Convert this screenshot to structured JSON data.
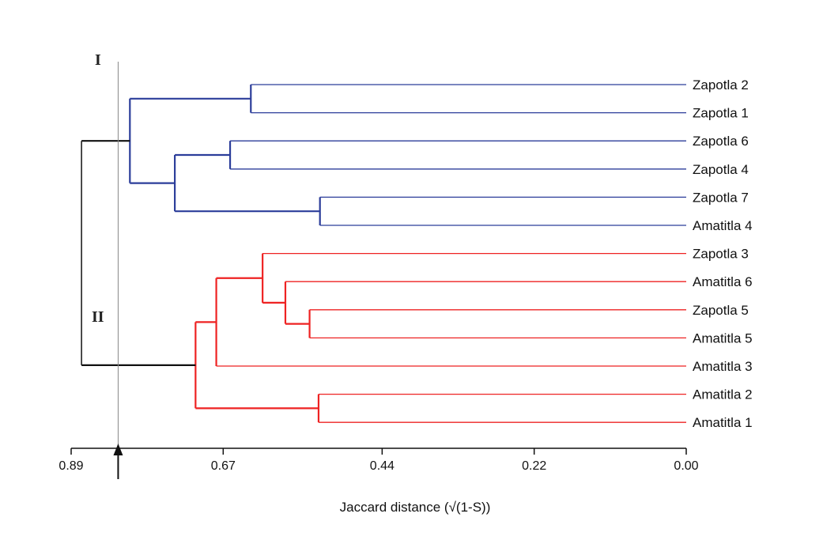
{
  "chart_data": {
    "type": "dendrogram",
    "title": "",
    "xlabel": "Jaccard distance (√(1-S))",
    "xlim": [
      0.89,
      0.0
    ],
    "ticks": [
      "0.89",
      "0.67",
      "0.44",
      "0.22",
      "0.00"
    ],
    "tick_values": [
      0.89,
      0.67,
      0.44,
      0.22,
      0.0
    ],
    "cutoff": 0.822,
    "colors": {
      "I": "#2b3d9a",
      "II": "#ee2222",
      "root": "#111111",
      "cutoff": "#888888"
    },
    "cluster_labels": [
      {
        "text": "I",
        "cluster": "I"
      },
      {
        "text": "II",
        "cluster": "II"
      }
    ],
    "leaves": [
      "Zapotla 2",
      "Zapotla 1",
      "Zapotla 6",
      "Zapotla 4",
      "Zapotla 7",
      "Amatitla 4",
      "Zapotla 3",
      "Amatitla 6",
      "Zapotla 5",
      "Amatitla 5",
      "Amatitla 3",
      "Amatitla 2",
      "Amatitla 1"
    ],
    "leaf_clusters": [
      "I",
      "I",
      "I",
      "I",
      "I",
      "I",
      "II",
      "II",
      "II",
      "II",
      "II",
      "II",
      "II"
    ],
    "merges": [
      {
        "id": "a",
        "children": [
          "Zapotla 2",
          "Zapotla 1"
        ],
        "height": 0.63,
        "cluster": "I"
      },
      {
        "id": "b",
        "children": [
          "Zapotla 6",
          "Zapotla 4"
        ],
        "height": 0.66,
        "cluster": "I"
      },
      {
        "id": "c",
        "children": [
          "Zapotla 7",
          "Amatitla 4"
        ],
        "height": 0.53,
        "cluster": "I"
      },
      {
        "id": "d",
        "children": [
          "b",
          "c"
        ],
        "height": 0.74,
        "cluster": "I"
      },
      {
        "id": "I",
        "children": [
          "a",
          "d"
        ],
        "height": 0.805,
        "cluster": "I"
      },
      {
        "id": "e",
        "children": [
          "Zapotla 5",
          "Amatitla 5"
        ],
        "height": 0.545,
        "cluster": "II"
      },
      {
        "id": "f",
        "children": [
          "Amatitla 6",
          "e"
        ],
        "height": 0.58,
        "cluster": "II"
      },
      {
        "id": "g",
        "children": [
          "Zapotla 3",
          "f"
        ],
        "height": 0.613,
        "cluster": "II"
      },
      {
        "id": "h",
        "children": [
          "g",
          "Amatitla 3"
        ],
        "height": 0.68,
        "cluster": "II"
      },
      {
        "id": "i",
        "children": [
          "Amatitla 2",
          "Amatitla 1"
        ],
        "height": 0.532,
        "cluster": "II"
      },
      {
        "id": "II",
        "children": [
          "h",
          "i"
        ],
        "height": 0.71,
        "cluster": "II"
      },
      {
        "id": "root",
        "children": [
          "I",
          "II"
        ],
        "height": 0.875,
        "cluster": "root"
      }
    ]
  }
}
